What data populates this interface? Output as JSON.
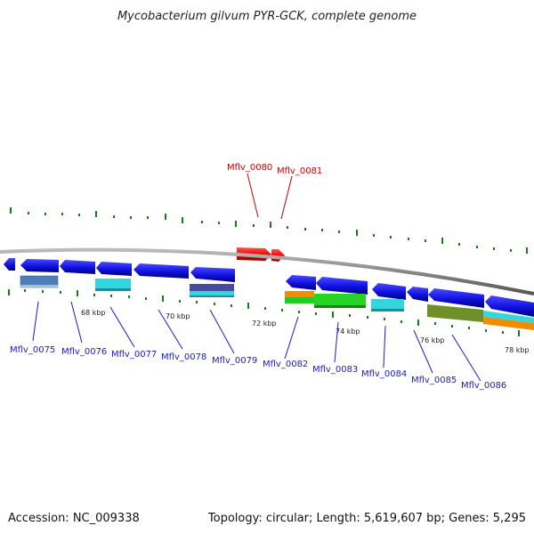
{
  "title": "Mycobacterium gilvum PYR-GCK, complete genome",
  "footer": {
    "accession": "Accession: NC_009338",
    "summary": "Topology: circular; Length: 5,619,607 bp; Genes: 5,295"
  },
  "scale_labels": [
    "68 kbp",
    "70 kbp",
    "72 kbp",
    "74 kbp",
    "76 kbp",
    "78 kbp"
  ],
  "gene_labels": {
    "highlighted": [
      "Mflv_0080",
      "Mflv_0081"
    ],
    "other": [
      "Mflv_0075",
      "Mflv_0076",
      "Mflv_0077",
      "Mflv_0078",
      "Mflv_0079",
      "Mflv_0082",
      "Mflv_0083",
      "Mflv_0084",
      "Mflv_0085",
      "Mflv_0086"
    ]
  },
  "colors": {
    "backbone": "#808080",
    "forward_gene": "#1010e0",
    "reverse_gene": "#0000ee",
    "highlight_gene": "#ee0000",
    "highlight_label": "#cc0000",
    "label": "#1a1ad0",
    "gc_tick": "#1a7a1a"
  }
}
